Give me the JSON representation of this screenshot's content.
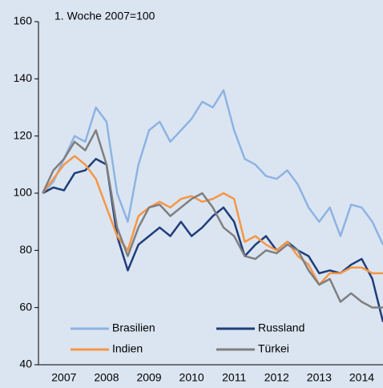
{
  "chart_data": {
    "type": "line",
    "annotation": "1. Woche 2007=100",
    "x": [
      2007.0,
      2007.25,
      2007.5,
      2007.75,
      2008.0,
      2008.25,
      2008.5,
      2008.75,
      2009.0,
      2009.25,
      2009.5,
      2009.75,
      2010.0,
      2010.25,
      2010.5,
      2010.75,
      2011.0,
      2011.25,
      2011.5,
      2011.75,
      2012.0,
      2012.25,
      2012.5,
      2012.75,
      2013.0,
      2013.25,
      2013.5,
      2013.75,
      2014.0,
      2014.25,
      2014.5,
      2014.75,
      2015.0
    ],
    "series": [
      {
        "name": "Brasilien",
        "color": "#8db3e2",
        "values": [
          100,
          104,
          112,
          120,
          118,
          130,
          125,
          100,
          90,
          110,
          122,
          125,
          118,
          122,
          126,
          132,
          130,
          136,
          122,
          112,
          110,
          106,
          105,
          108,
          103,
          95,
          90,
          95,
          85,
          96,
          95,
          90,
          82
        ]
      },
      {
        "name": "Russland",
        "color": "#1f3d7a",
        "values": [
          100,
          102,
          101,
          107,
          108,
          112,
          110,
          85,
          73,
          82,
          85,
          88,
          85,
          90,
          85,
          88,
          92,
          95,
          90,
          78,
          82,
          85,
          80,
          83,
          80,
          78,
          72,
          73,
          72,
          75,
          77,
          70,
          55
        ]
      },
      {
        "name": "Indien",
        "color": "#f79646",
        "values": [
          100,
          105,
          110,
          113,
          110,
          105,
          95,
          85,
          80,
          92,
          95,
          97,
          95,
          98,
          99,
          97,
          98,
          100,
          98,
          83,
          85,
          82,
          80,
          83,
          78,
          75,
          68,
          72,
          72,
          74,
          74,
          72,
          72
        ]
      },
      {
        "name": "Türkei",
        "color": "#7f7f7f",
        "values": [
          100,
          108,
          112,
          118,
          115,
          122,
          110,
          88,
          78,
          88,
          95,
          96,
          92,
          95,
          98,
          100,
          95,
          88,
          85,
          78,
          77,
          80,
          79,
          82,
          80,
          73,
          68,
          70,
          62,
          65,
          62,
          60,
          60
        ]
      }
    ],
    "xlim": [
      2006.9,
      2015.0
    ],
    "xticks": [
      {
        "value": 2007.5,
        "label": "2007"
      },
      {
        "value": 2008.5,
        "label": "2008"
      },
      {
        "value": 2009.5,
        "label": "2009"
      },
      {
        "value": 2010.5,
        "label": "2010"
      },
      {
        "value": 2011.5,
        "label": "2011"
      },
      {
        "value": 2012.5,
        "label": "2012"
      },
      {
        "value": 2013.5,
        "label": "2013"
      },
      {
        "value": 2014.5,
        "label": "2014"
      }
    ],
    "ylim": [
      40,
      160
    ],
    "yticks": [
      40,
      60,
      80,
      100,
      120,
      140,
      160
    ],
    "grid": false
  }
}
